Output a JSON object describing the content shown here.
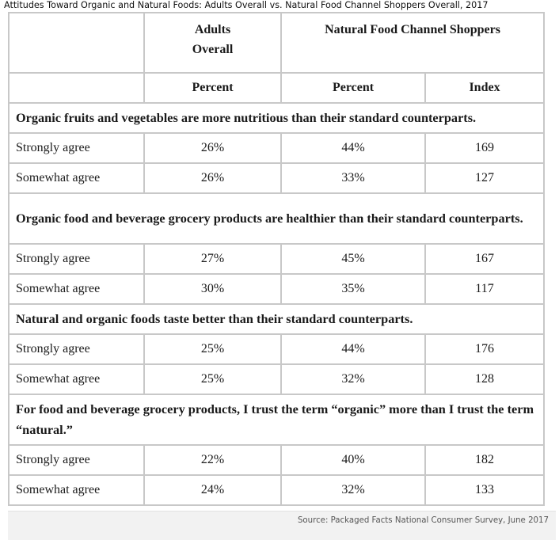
{
  "caption": "Attitudes Toward Organic and Natural Foods: Adults Overall vs. Natural Food Channel Shoppers Overall, 2017",
  "source": "Source: Packaged Facts National Consumer Survey, June 2017",
  "chart_data": {
    "type": "table",
    "title": "Attitudes Toward Organic and Natural Foods: Adults Overall vs. Natural Food Channel Shoppers Overall, 2017",
    "header_groups": [
      "Adults Overall",
      "Natural Food Channel Shoppers"
    ],
    "columns": [
      "Percent",
      "Percent",
      "Index"
    ],
    "sections": [
      {
        "statement": "Organic fruits and vegetables are more nutritious than their standard counterparts.",
        "rows": [
          {
            "label": "Strongly agree",
            "adults": "26%",
            "shoppers": "44%",
            "index": "169"
          },
          {
            "label": "Somewhat agree",
            "adults": "26%",
            "shoppers": "33%",
            "index": "127"
          }
        ]
      },
      {
        "statement": "Organic food and beverage grocery products are healthier than their standard counterparts.",
        "rows": [
          {
            "label": "Strongly agree",
            "adults": "27%",
            "shoppers": "45%",
            "index": "167"
          },
          {
            "label": "Somewhat agree",
            "adults": "30%",
            "shoppers": "35%",
            "index": "117"
          }
        ]
      },
      {
        "statement": "Natural and organic foods taste better than their standard counterparts.",
        "rows": [
          {
            "label": "Strongly agree",
            "adults": "25%",
            "shoppers": "44%",
            "index": "176"
          },
          {
            "label": "Somewhat agree",
            "adults": "25%",
            "shoppers": "32%",
            "index": "128"
          }
        ]
      },
      {
        "statement": "For food and beverage grocery products, I trust the term “organic” more than I trust the term “natural.”",
        "rows": [
          {
            "label": "Strongly agree",
            "adults": "22%",
            "shoppers": "40%",
            "index": "182"
          },
          {
            "label": "Somewhat agree",
            "adults": "24%",
            "shoppers": "32%",
            "index": "133"
          }
        ]
      }
    ]
  }
}
